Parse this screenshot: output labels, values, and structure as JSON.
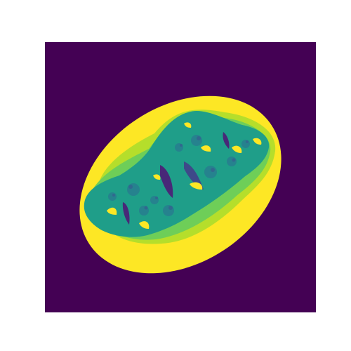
{
  "figure": {
    "subject": "fractal-escape-time-image",
    "colormap": "viridis",
    "background_color": "#ffffff",
    "colors": {
      "exterior": "#440154",
      "band_outer": "#fde725",
      "band_2": "#b5de2b",
      "band_3": "#6ece58",
      "band_4": "#35b779",
      "interior": "#1f9e89",
      "interior_dark": "#26828e",
      "detail_dark": "#31688e",
      "detail_deep": "#3e4989",
      "core_dark": "#482878"
    },
    "axes_visible": false
  }
}
